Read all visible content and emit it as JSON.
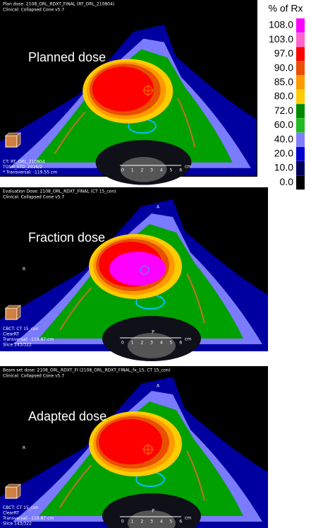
{
  "legend": {
    "title": "% of Rx",
    "levels": [
      {
        "value": 108,
        "label": "108.0",
        "color": "#ff00ff"
      },
      {
        "value": 103,
        "label": "103.0",
        "color": "#ff66cc"
      },
      {
        "value": 97,
        "label": "97.0",
        "color": "#ff0000"
      },
      {
        "value": 90,
        "label": "90.0",
        "color": "#e85000"
      },
      {
        "value": 85,
        "label": "85.0",
        "color": "#ff9900"
      },
      {
        "value": 80,
        "label": "80.0",
        "color": "#ffcc00"
      },
      {
        "value": 72,
        "label": "72.0",
        "color": "#008800"
      },
      {
        "value": 60,
        "label": "60.0",
        "color": "#22bb22"
      },
      {
        "value": 40,
        "label": "40.0",
        "color": "#8080ff"
      },
      {
        "value": 20,
        "label": "20.0",
        "color": "#0000cc"
      },
      {
        "value": 10,
        "label": "10.0",
        "color": "#00005a"
      },
      {
        "value": 0,
        "label": "0.0",
        "color": "#000000"
      }
    ]
  },
  "panels": [
    {
      "header": [
        "Plan dose: 2108_ORL_RDXT_FINAL (RT_ORL_210804)",
        "Clinical: Collapsed Cone v5.7"
      ],
      "label": "Planned dose",
      "info": [
        "CT: RT_ORL_210804",
        "TOSH_STD_2016/2",
        "* Transversal: -119.55 cm"
      ],
      "scale": {
        "ticks": "0 1 2 3 4 5 6",
        "unit": "cm"
      }
    },
    {
      "header": [
        "Evaluation Dose: 2108_ORL_RDXT_FINAL (CT 15_con)",
        "Clinical: Collapsed Cone v5.7"
      ],
      "orientation": {
        "anterior": "A",
        "right": "R",
        "posterior": "P"
      },
      "label": "Fraction dose",
      "info": [
        "CBCT: CT 15_con",
        "ClearRT",
        "Transversal: -119.87 cm",
        "Slice 143/322"
      ],
      "scale": {
        "ticks": "0 1 2 3 4 5 6",
        "unit": "cm"
      }
    },
    {
      "header": [
        "Beam set dose: 2108_ORL_RDXT_FI (2108_ORL_RDXT_FINAL_fx_15, CT 15_con)",
        "Clinical: Collapsed Cone v5.7"
      ],
      "orientation": {
        "anterior": "A",
        "right": "R",
        "posterior": "P"
      },
      "label": "Adapted dose",
      "info": [
        "CBCT: CT 15_con",
        "ClearRT",
        "Transversal: -119.87 cm",
        "Slice 143/322"
      ],
      "scale": {
        "ticks": "0 1 2 3 4 5 6",
        "unit": "cm"
      }
    }
  ]
}
